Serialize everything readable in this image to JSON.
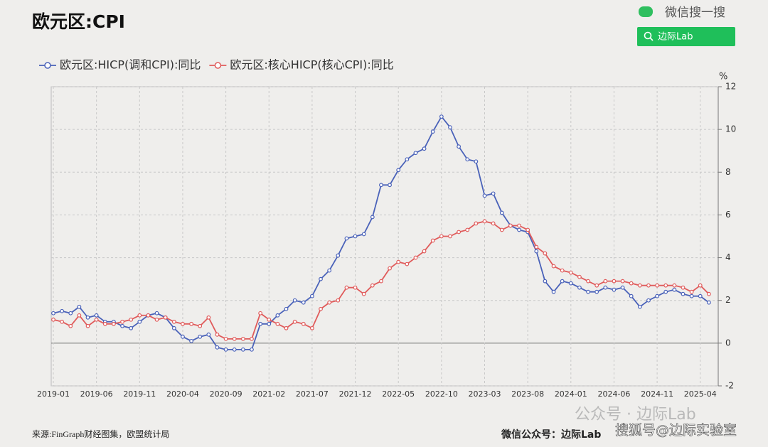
{
  "chart_data": {
    "type": "line",
    "title": "欧元区:CPI",
    "ylabel": "%",
    "categories": [
      "2019-01",
      null,
      null,
      null,
      null,
      "2019-06",
      null,
      null,
      null,
      null,
      "2019-11",
      null,
      null,
      null,
      null,
      "2020-04",
      null,
      null,
      null,
      null,
      "2020-09",
      null,
      null,
      null,
      null,
      "2021-02",
      null,
      null,
      null,
      null,
      "2021-07",
      null,
      null,
      null,
      null,
      "2021-12",
      null,
      null,
      null,
      null,
      "2022-05",
      null,
      null,
      null,
      null,
      "2022-10",
      null,
      null,
      null,
      null,
      "2023-03",
      null,
      null,
      null,
      null,
      "2023-08",
      null,
      null,
      null,
      null,
      "2024-01",
      null,
      null,
      null,
      null,
      "2024-06",
      null,
      null,
      null,
      null,
      "2024-11",
      null,
      null,
      null,
      null,
      "2025-04",
      null
    ],
    "series": [
      {
        "name": "欧元区:HICP(调和CPI):同比",
        "color": "#4a62b9",
        "values": [
          1.4,
          1.5,
          1.4,
          1.7,
          1.2,
          1.3,
          1.0,
          1.0,
          0.8,
          0.7,
          1.0,
          1.3,
          1.4,
          1.2,
          0.7,
          0.3,
          0.1,
          0.3,
          0.4,
          -0.2,
          -0.3,
          -0.3,
          -0.3,
          -0.3,
          0.9,
          0.9,
          1.3,
          1.6,
          2.0,
          1.9,
          2.2,
          3.0,
          3.4,
          4.1,
          4.9,
          5.0,
          5.1,
          5.9,
          7.4,
          7.4,
          8.1,
          8.6,
          8.9,
          9.1,
          9.9,
          10.6,
          10.1,
          9.2,
          8.6,
          8.5,
          6.9,
          7.0,
          6.1,
          5.5,
          5.3,
          5.2,
          4.3,
          2.9,
          2.4,
          2.9,
          2.8,
          2.6,
          2.4,
          2.4,
          2.6,
          2.5,
          2.6,
          2.2,
          1.7,
          2.0,
          2.2,
          2.4,
          2.5,
          2.3,
          2.2,
          2.2,
          1.9
        ]
      },
      {
        "name": "欧元区:核心HICP(核心CPI):同比",
        "color": "#e05b5b",
        "values": [
          1.1,
          1.0,
          0.8,
          1.3,
          0.8,
          1.1,
          0.9,
          0.9,
          1.0,
          1.1,
          1.3,
          1.3,
          1.1,
          1.2,
          1.0,
          0.9,
          0.9,
          0.8,
          1.2,
          0.4,
          0.2,
          0.2,
          0.2,
          0.2,
          1.4,
          1.1,
          0.9,
          0.7,
          1.0,
          0.9,
          0.7,
          1.6,
          1.9,
          2.0,
          2.6,
          2.6,
          2.3,
          2.7,
          2.9,
          3.5,
          3.8,
          3.7,
          4.0,
          4.3,
          4.8,
          5.0,
          5.0,
          5.2,
          5.3,
          5.6,
          5.7,
          5.6,
          5.3,
          5.5,
          5.5,
          5.3,
          4.5,
          4.2,
          3.6,
          3.4,
          3.3,
          3.1,
          2.9,
          2.7,
          2.9,
          2.9,
          2.9,
          2.8,
          2.7,
          2.7,
          2.7,
          2.7,
          2.7,
          2.6,
          2.4,
          2.7,
          2.3
        ]
      }
    ],
    "ylim": [
      -2,
      12
    ],
    "yticks": [
      -2,
      0,
      2,
      4,
      6,
      8,
      10,
      12
    ],
    "grid": true,
    "source": "来源:FinGraph财经图集，欧盟统计局"
  },
  "page": {
    "search_label": "微信搜一搜",
    "search_button": "边际Lab",
    "watermark_1": "公众号 · 边际Lab",
    "watermark_2": "搜狐号@边际实验室",
    "footer_right": "微信公众号：边际Lab"
  }
}
